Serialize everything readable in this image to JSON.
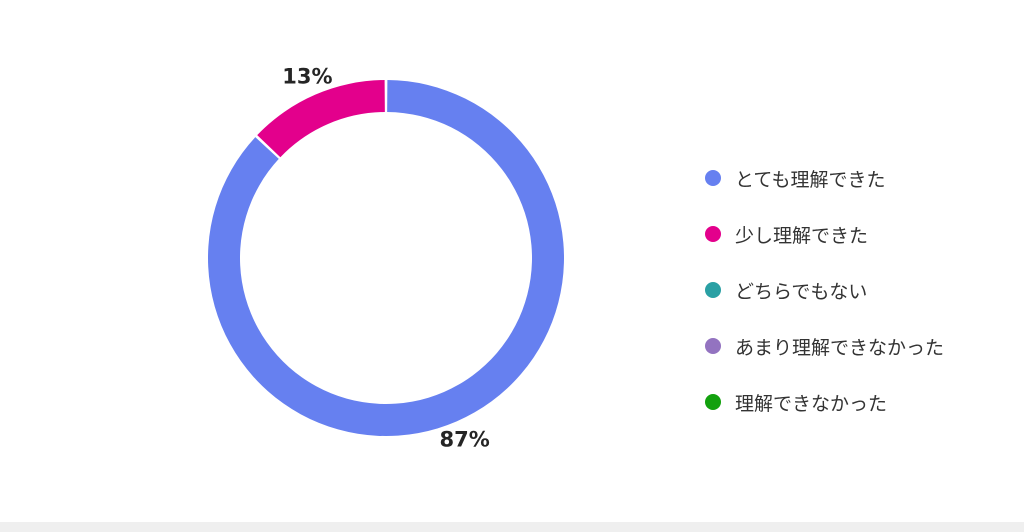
{
  "chart_data": {
    "type": "pie",
    "donut": true,
    "categories": [
      "とても理解できた",
      "少し理解できた",
      "どちらでもない",
      "あまり理解できなかった",
      "理解できなかった"
    ],
    "values": [
      87,
      13,
      0,
      0,
      0
    ],
    "data_labels": [
      "87%",
      "13%",
      "",
      "",
      ""
    ],
    "colors": [
      "#6680f0",
      "#e3008c",
      "#2aa0a4",
      "#9373c0",
      "#13a10e"
    ],
    "legend": {
      "position": "right",
      "entries": [
        "とても理解できた",
        "少し理解できた",
        "どちらでもない",
        "あまり理解できなかった",
        "理解できなかった"
      ]
    }
  }
}
